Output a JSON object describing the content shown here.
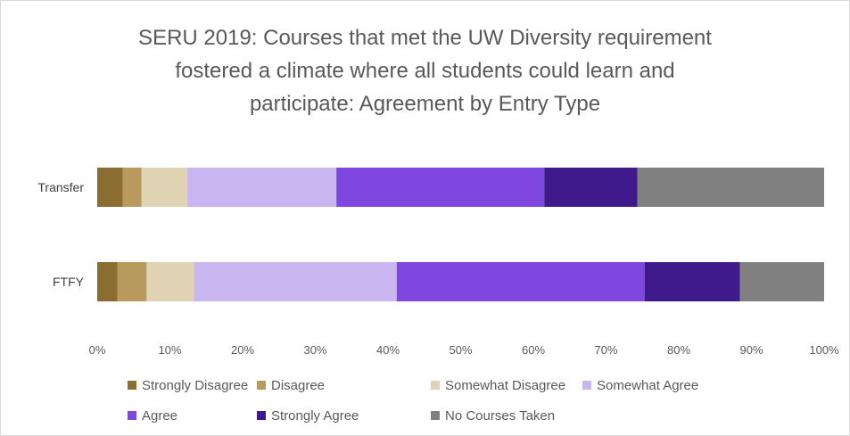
{
  "chart_data": {
    "type": "bar",
    "orientation": "horizontal",
    "stacked": "100%",
    "title": "SERU 2019: Courses that met the UW Diversity requirement fostered a climate where all students could learn and participate: Agreement by Entry Type",
    "title_lines": [
      "SERU 2019: Courses that met the UW Diversity requirement",
      "fostered a climate where all students could learn and",
      "participate: Agreement by Entry Type"
    ],
    "categories": [
      "Transfer",
      "FTFY"
    ],
    "x_ticks": [
      "0%",
      "10%",
      "20%",
      "30%",
      "40%",
      "50%",
      "60%",
      "70%",
      "80%",
      "90%",
      "100%"
    ],
    "xlim": [
      0,
      100
    ],
    "grid": false,
    "legend_position": "bottom",
    "series": [
      {
        "name": "Strongly Disagree",
        "color": "#8c6d31",
        "values": [
          3.5,
          2.8
        ]
      },
      {
        "name": "Disagree",
        "color": "#b89a5e",
        "values": [
          2.6,
          4.0
        ]
      },
      {
        "name": "Somewhat Disagree",
        "color": "#e0d3b4",
        "values": [
          6.3,
          6.5
        ]
      },
      {
        "name": "Somewhat Agree",
        "color": "#c9b5f0",
        "values": [
          20.5,
          27.9
        ]
      },
      {
        "name": "Agree",
        "color": "#7f47e0",
        "values": [
          28.6,
          34.1
        ]
      },
      {
        "name": "Strongly Agree",
        "color": "#3f1a8c",
        "values": [
          12.8,
          13.1
        ]
      },
      {
        "name": "No Courses Taken",
        "color": "#808080",
        "values": [
          25.7,
          11.6
        ]
      }
    ]
  }
}
